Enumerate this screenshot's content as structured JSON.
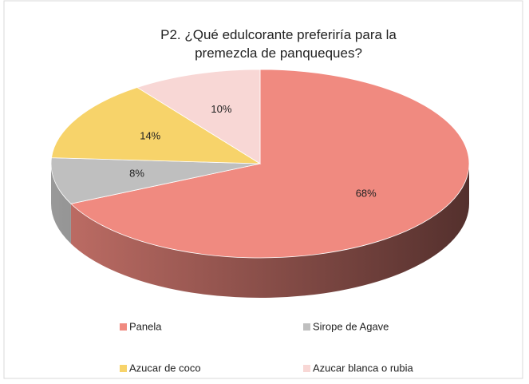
{
  "chart_data": {
    "type": "pie",
    "title": "P2. ¿Qué edulcorante preferiría para la premezcla de panqueques?",
    "categories": [
      "Panela",
      "Sirope de Agave",
      "Azucar de coco",
      "Azucar blanca o rubia"
    ],
    "values": [
      68,
      8,
      14,
      10
    ],
    "value_labels": [
      "68%",
      "8%",
      "14%",
      "10%"
    ],
    "colors": [
      "#f08a80",
      "#bfbfbf",
      "#f7d36a",
      "#f8d7d5"
    ],
    "legend": "bottom"
  }
}
